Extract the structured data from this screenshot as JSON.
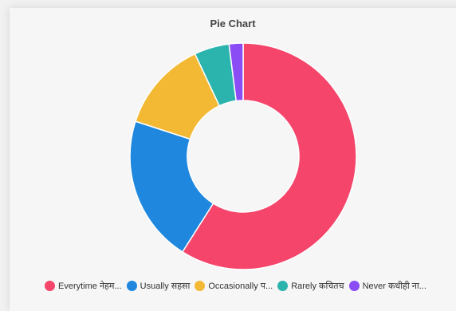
{
  "chart_data": {
    "type": "pie",
    "variant": "donut",
    "title": "Pie Chart",
    "legend_position": "bottom",
    "slices": [
      {
        "label": "Everytime नेहम...",
        "value": 59,
        "color": "#f5456b"
      },
      {
        "label": "Usually सहसा",
        "value": 21,
        "color": "#1f88de"
      },
      {
        "label": "Occasionally प...",
        "value": 13,
        "color": "#f3b935"
      },
      {
        "label": "Rarely कचितच",
        "value": 5,
        "color": "#2bb3ad"
      },
      {
        "label": "Never कधीही ना...",
        "value": 2,
        "color": "#8a4cf5"
      }
    ]
  }
}
